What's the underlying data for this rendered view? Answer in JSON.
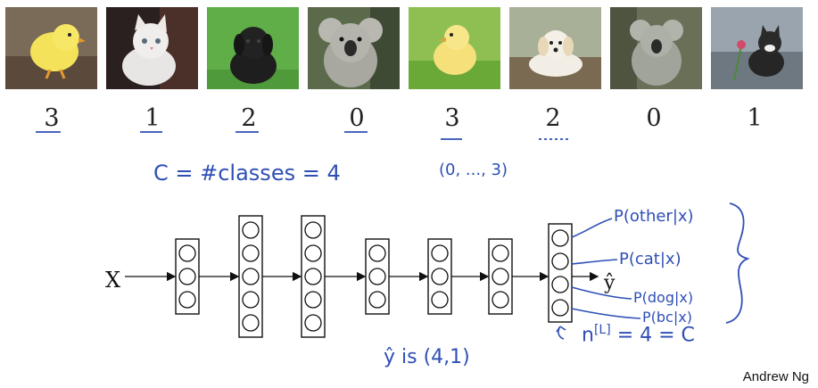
{
  "images": [
    {
      "subject": "chick",
      "label": "3"
    },
    {
      "subject": "kitten",
      "label": "1"
    },
    {
      "subject": "puppy-black",
      "label": "2"
    },
    {
      "subject": "koala",
      "label": "0"
    },
    {
      "subject": "chick",
      "label": "3"
    },
    {
      "subject": "puppy-white",
      "label": "2"
    },
    {
      "subject": "koala",
      "label": "0"
    },
    {
      "subject": "kitten",
      "label": "1"
    }
  ],
  "notes": {
    "classes_eq": "C = #classes = 4",
    "range": "(0, ..., 3)",
    "shape": "ŷ is (4,1)",
    "nL": "n",
    "nL_sup": "[L]",
    "nL_rest": "= 4 = C"
  },
  "network": {
    "input_label": "X",
    "output_label": "ŷ",
    "layer_sizes": [
      3,
      5,
      5,
      3,
      3,
      3,
      4
    ]
  },
  "outputs": [
    "P(other|x)",
    "P(cat|x)",
    "P(dog|x)",
    "P(bc|x)"
  ],
  "footer": "Andrew Ng",
  "colors": {
    "ink": "#2f4fb5",
    "text": "#222222"
  }
}
